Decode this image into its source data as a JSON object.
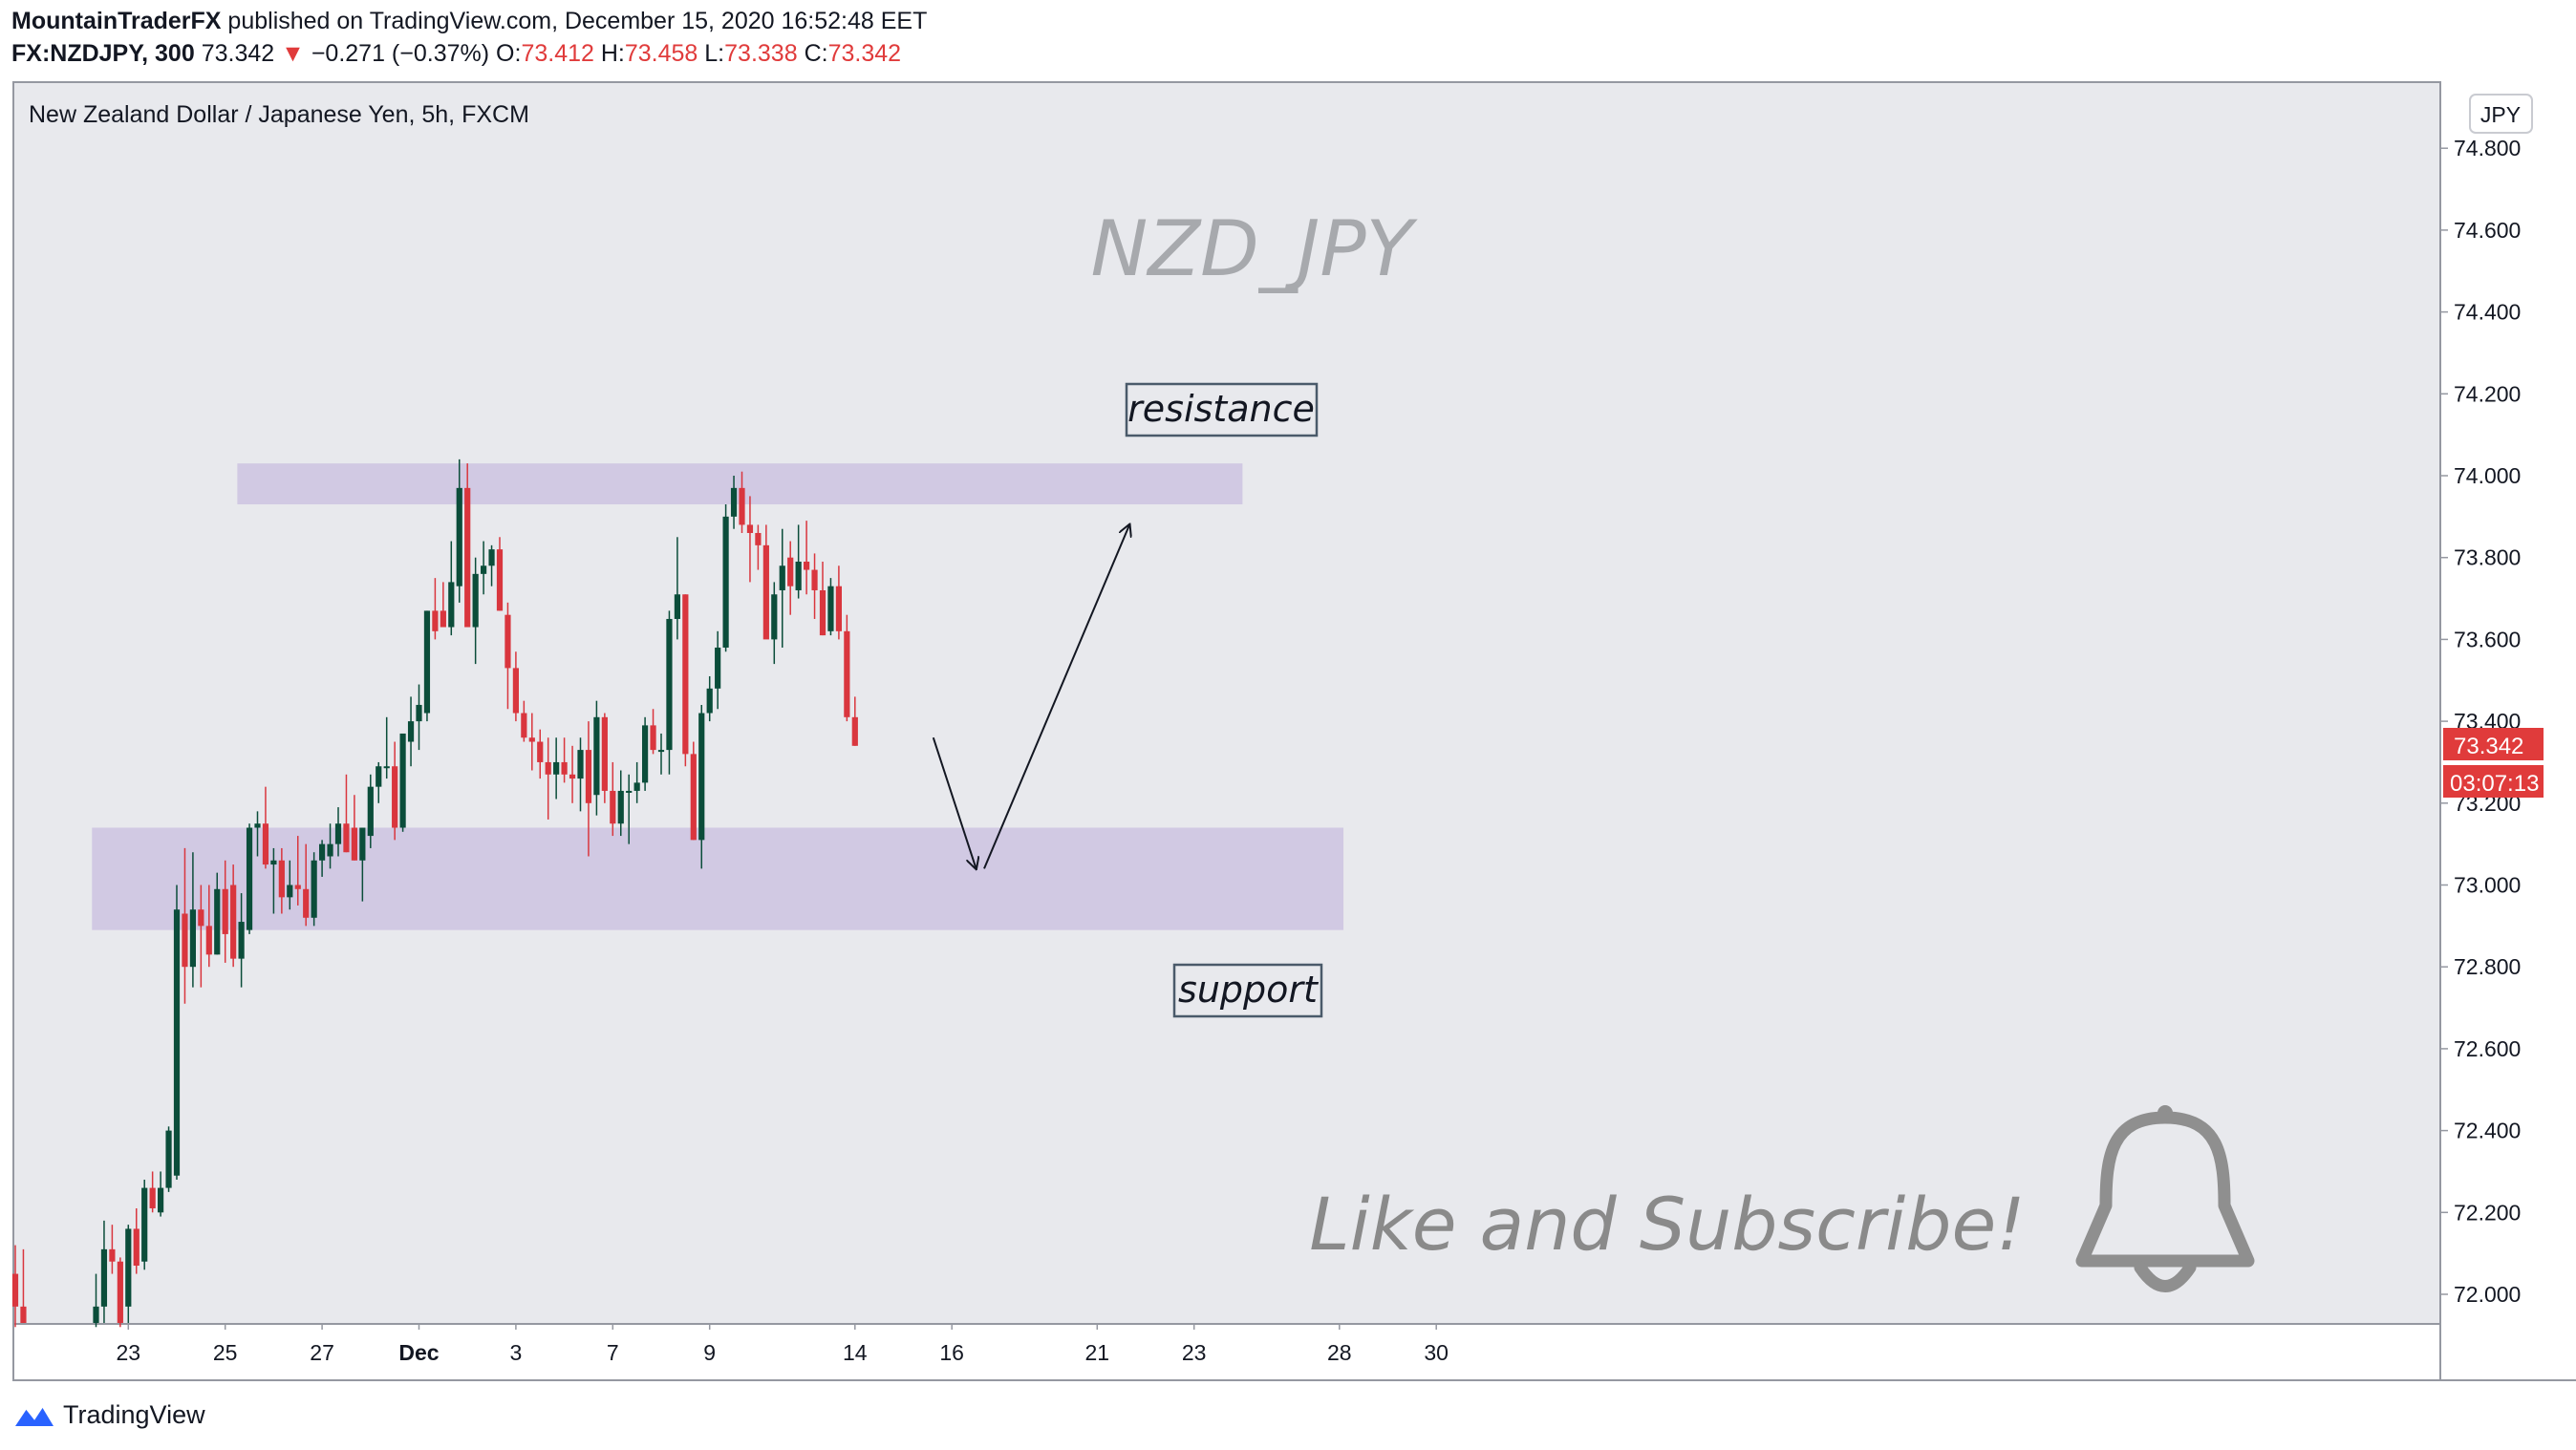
{
  "header": {
    "author": "MountainTraderFX",
    "published": "published on TradingView.com, December 15, 2020 16:52:48 EET",
    "symbol": "FX:NZDJPY, 300",
    "last": "73.342",
    "change": "−0.271 (−0.37%)",
    "o_label": "O:",
    "o_value": "73.412",
    "h_label": "H:",
    "h_value": "73.458",
    "l_label": "L:",
    "l_value": "73.338",
    "c_label": "C:",
    "c_value": "73.342"
  },
  "chart_title": "New Zealand Dollar / Japanese Yen, 5h, FXCM",
  "watermark": "NZD_JPY",
  "currency_badge": "JPY",
  "price_tag": "73.342",
  "countdown_tag": "03:07:13",
  "annotations": {
    "resistance": "resistance",
    "support": "support",
    "cta": "Like and Subscribe!"
  },
  "footer": {
    "brand": "TradingView"
  },
  "colors": {
    "up": "#0b4d3a",
    "down": "#d9363e",
    "zone": "#d1c9e3",
    "background": "#e8e9ed",
    "price_tag": "#e03b3b"
  },
  "icons": [
    "bell-icon",
    "tradingview-logo-icon"
  ],
  "chart_data": {
    "type": "candlestick",
    "ylim": [
      71.92,
      74.92
    ],
    "y_ticks": [
      "72.000",
      "72.200",
      "72.400",
      "72.600",
      "72.800",
      "73.000",
      "73.200",
      "73.400",
      "73.600",
      "73.800",
      "74.000",
      "74.200",
      "74.400",
      "74.600",
      "74.800"
    ],
    "x_ticks": [
      {
        "label": "23",
        "index": 14
      },
      {
        "label": "25",
        "index": 26
      },
      {
        "label": "27",
        "index": 38
      },
      {
        "label": "Dec",
        "index": 50
      },
      {
        "label": "3",
        "index": 62
      },
      {
        "label": "7",
        "index": 74
      },
      {
        "label": "9",
        "index": 86
      },
      {
        "label": "14",
        "index": 104
      },
      {
        "label": "16",
        "index": 116
      },
      {
        "label": "21",
        "index": 134
      },
      {
        "label": "23",
        "index": 146
      },
      {
        "label": "28",
        "index": 164
      },
      {
        "label": "30",
        "index": 176
      }
    ],
    "zones": [
      {
        "label": "resistance",
        "from_index": 27.5,
        "to_index": 152,
        "low": 73.93,
        "high": 74.03
      },
      {
        "label": "support",
        "from_index": 9.5,
        "to_index": 164.5,
        "low": 72.89,
        "high": 73.14
      }
    ],
    "projection": [
      {
        "index": 113.7,
        "price": 73.36
      },
      {
        "index": 119,
        "price": 73.04
      },
      {
        "index": 120,
        "price": 73.04
      },
      {
        "index": 138,
        "price": 73.88
      }
    ],
    "candles": [
      {
        "i": 0,
        "o": 72.05,
        "h": 72.12,
        "l": 71.92,
        "c": 71.97
      },
      {
        "i": 1,
        "o": 71.97,
        "h": 72.11,
        "l": 71.93,
        "c": 71.93
      },
      {
        "i": 10,
        "o": 71.93,
        "h": 72.05,
        "l": 71.92,
        "c": 71.97
      },
      {
        "i": 11,
        "o": 71.97,
        "h": 72.18,
        "l": 71.93,
        "c": 72.11
      },
      {
        "i": 12,
        "o": 72.11,
        "h": 72.17,
        "l": 72.05,
        "c": 72.08
      },
      {
        "i": 13,
        "o": 72.08,
        "h": 72.09,
        "l": 71.92,
        "c": 71.93
      },
      {
        "i": 14,
        "o": 71.97,
        "h": 72.17,
        "l": 71.93,
        "c": 72.16
      },
      {
        "i": 15,
        "o": 72.16,
        "h": 72.21,
        "l": 72.05,
        "c": 72.07
      },
      {
        "i": 16,
        "o": 72.08,
        "h": 72.28,
        "l": 72.06,
        "c": 72.26
      },
      {
        "i": 17,
        "o": 72.26,
        "h": 72.3,
        "l": 72.2,
        "c": 72.21
      },
      {
        "i": 18,
        "o": 72.2,
        "h": 72.3,
        "l": 72.19,
        "c": 72.26
      },
      {
        "i": 19,
        "o": 72.26,
        "h": 72.41,
        "l": 72.25,
        "c": 72.4
      },
      {
        "i": 20,
        "o": 72.29,
        "h": 73.0,
        "l": 72.28,
        "c": 72.94
      },
      {
        "i": 21,
        "o": 72.93,
        "h": 73.09,
        "l": 72.71,
        "c": 72.8
      },
      {
        "i": 22,
        "o": 72.8,
        "h": 73.08,
        "l": 72.75,
        "c": 72.94
      },
      {
        "i": 23,
        "o": 72.94,
        "h": 73.0,
        "l": 72.75,
        "c": 72.9
      },
      {
        "i": 24,
        "o": 72.9,
        "h": 73.0,
        "l": 72.8,
        "c": 72.83
      },
      {
        "i": 25,
        "o": 72.83,
        "h": 73.03,
        "l": 72.83,
        "c": 72.99
      },
      {
        "i": 26,
        "o": 72.99,
        "h": 73.06,
        "l": 72.81,
        "c": 72.88
      },
      {
        "i": 27,
        "o": 73.0,
        "h": 73.05,
        "l": 72.8,
        "c": 72.82
      },
      {
        "i": 28,
        "o": 72.82,
        "h": 72.98,
        "l": 72.75,
        "c": 72.91
      },
      {
        "i": 29,
        "o": 72.89,
        "h": 73.15,
        "l": 72.88,
        "c": 73.14
      },
      {
        "i": 30,
        "o": 73.14,
        "h": 73.18,
        "l": 73.07,
        "c": 73.15
      },
      {
        "i": 31,
        "o": 73.15,
        "h": 73.24,
        "l": 73.04,
        "c": 73.05
      },
      {
        "i": 32,
        "o": 73.05,
        "h": 73.09,
        "l": 72.93,
        "c": 73.06
      },
      {
        "i": 33,
        "o": 73.06,
        "h": 73.09,
        "l": 72.93,
        "c": 72.97
      },
      {
        "i": 34,
        "o": 72.97,
        "h": 73.06,
        "l": 72.94,
        "c": 73.0
      },
      {
        "i": 35,
        "o": 73.0,
        "h": 73.12,
        "l": 72.95,
        "c": 72.99
      },
      {
        "i": 36,
        "o": 72.99,
        "h": 73.1,
        "l": 72.9,
        "c": 72.92
      },
      {
        "i": 37,
        "o": 72.92,
        "h": 73.08,
        "l": 72.9,
        "c": 73.06
      },
      {
        "i": 38,
        "o": 73.06,
        "h": 73.11,
        "l": 73.02,
        "c": 73.1
      },
      {
        "i": 39,
        "o": 73.07,
        "h": 73.15,
        "l": 73.04,
        "c": 73.1
      },
      {
        "i": 40,
        "o": 73.1,
        "h": 73.19,
        "l": 73.07,
        "c": 73.15
      },
      {
        "i": 41,
        "o": 73.15,
        "h": 73.27,
        "l": 73.08,
        "c": 73.08
      },
      {
        "i": 42,
        "o": 73.14,
        "h": 73.22,
        "l": 73.06,
        "c": 73.06
      },
      {
        "i": 43,
        "o": 73.06,
        "h": 73.14,
        "l": 72.96,
        "c": 73.14
      },
      {
        "i": 44,
        "o": 73.12,
        "h": 73.27,
        "l": 73.09,
        "c": 73.24
      },
      {
        "i": 45,
        "o": 73.24,
        "h": 73.3,
        "l": 73.2,
        "c": 73.29
      },
      {
        "i": 46,
        "o": 73.29,
        "h": 73.41,
        "l": 73.26,
        "c": 73.29
      },
      {
        "i": 47,
        "o": 73.29,
        "h": 73.35,
        "l": 73.11,
        "c": 73.14
      },
      {
        "i": 48,
        "o": 73.14,
        "h": 73.35,
        "l": 73.13,
        "c": 73.37
      },
      {
        "i": 49,
        "o": 73.35,
        "h": 73.46,
        "l": 73.29,
        "c": 73.4
      },
      {
        "i": 50,
        "o": 73.4,
        "h": 73.49,
        "l": 73.33,
        "c": 73.44
      },
      {
        "i": 51,
        "o": 73.42,
        "h": 73.67,
        "l": 73.4,
        "c": 73.67
      },
      {
        "i": 52,
        "o": 73.67,
        "h": 73.75,
        "l": 73.6,
        "c": 73.62
      },
      {
        "i": 53,
        "o": 73.67,
        "h": 73.74,
        "l": 73.65,
        "c": 73.63
      },
      {
        "i": 54,
        "o": 73.63,
        "h": 73.84,
        "l": 73.61,
        "c": 73.74
      },
      {
        "i": 55,
        "o": 73.73,
        "h": 74.04,
        "l": 73.69,
        "c": 73.97
      },
      {
        "i": 56,
        "o": 73.97,
        "h": 74.03,
        "l": 73.63,
        "c": 73.63
      },
      {
        "i": 57,
        "o": 73.63,
        "h": 73.8,
        "l": 73.54,
        "c": 73.76
      },
      {
        "i": 58,
        "o": 73.76,
        "h": 73.84,
        "l": 73.71,
        "c": 73.78
      },
      {
        "i": 59,
        "o": 73.78,
        "h": 73.83,
        "l": 73.73,
        "c": 73.82
      },
      {
        "i": 60,
        "o": 73.82,
        "h": 73.85,
        "l": 73.67,
        "c": 73.67
      },
      {
        "i": 61,
        "o": 73.66,
        "h": 73.69,
        "l": 73.43,
        "c": 73.53
      },
      {
        "i": 62,
        "o": 73.53,
        "h": 73.57,
        "l": 73.4,
        "c": 73.42
      },
      {
        "i": 63,
        "o": 73.42,
        "h": 73.45,
        "l": 73.35,
        "c": 73.36
      },
      {
        "i": 64,
        "o": 73.36,
        "h": 73.42,
        "l": 73.28,
        "c": 73.35
      },
      {
        "i": 65,
        "o": 73.35,
        "h": 73.38,
        "l": 73.26,
        "c": 73.3
      },
      {
        "i": 66,
        "o": 73.3,
        "h": 73.36,
        "l": 73.16,
        "c": 73.27
      },
      {
        "i": 67,
        "o": 73.27,
        "h": 73.36,
        "l": 73.21,
        "c": 73.3
      },
      {
        "i": 68,
        "o": 73.3,
        "h": 73.36,
        "l": 73.25,
        "c": 73.27
      },
      {
        "i": 69,
        "o": 73.27,
        "h": 73.34,
        "l": 73.2,
        "c": 73.26
      },
      {
        "i": 70,
        "o": 73.26,
        "h": 73.36,
        "l": 73.18,
        "c": 73.33
      },
      {
        "i": 71,
        "o": 73.33,
        "h": 73.4,
        "l": 73.07,
        "c": 73.2
      },
      {
        "i": 72,
        "o": 73.22,
        "h": 73.45,
        "l": 73.17,
        "c": 73.41
      },
      {
        "i": 73,
        "o": 73.41,
        "h": 73.42,
        "l": 73.2,
        "c": 73.23
      },
      {
        "i": 74,
        "o": 73.23,
        "h": 73.3,
        "l": 73.12,
        "c": 73.15
      },
      {
        "i": 75,
        "o": 73.15,
        "h": 73.28,
        "l": 73.12,
        "c": 73.23
      },
      {
        "i": 76,
        "o": 73.23,
        "h": 73.27,
        "l": 73.1,
        "c": 73.23
      },
      {
        "i": 77,
        "o": 73.23,
        "h": 73.3,
        "l": 73.2,
        "c": 73.25
      },
      {
        "i": 78,
        "o": 73.25,
        "h": 73.41,
        "l": 73.23,
        "c": 73.39
      },
      {
        "i": 79,
        "o": 73.39,
        "h": 73.43,
        "l": 73.32,
        "c": 73.33
      },
      {
        "i": 80,
        "o": 73.33,
        "h": 73.37,
        "l": 73.27,
        "c": 73.33
      },
      {
        "i": 81,
        "o": 73.33,
        "h": 73.67,
        "l": 73.27,
        "c": 73.65
      },
      {
        "i": 82,
        "o": 73.65,
        "h": 73.85,
        "l": 73.6,
        "c": 73.71
      },
      {
        "i": 83,
        "o": 73.71,
        "h": 73.71,
        "l": 73.29,
        "c": 73.32
      },
      {
        "i": 84,
        "o": 73.32,
        "h": 73.35,
        "l": 73.11,
        "c": 73.11
      },
      {
        "i": 85,
        "o": 73.11,
        "h": 73.44,
        "l": 73.04,
        "c": 73.42
      },
      {
        "i": 86,
        "o": 73.42,
        "h": 73.51,
        "l": 73.4,
        "c": 73.48
      },
      {
        "i": 87,
        "o": 73.48,
        "h": 73.62,
        "l": 73.43,
        "c": 73.58
      },
      {
        "i": 88,
        "o": 73.58,
        "h": 73.93,
        "l": 73.57,
        "c": 73.9
      },
      {
        "i": 89,
        "o": 73.9,
        "h": 74.0,
        "l": 73.87,
        "c": 73.97
      },
      {
        "i": 90,
        "o": 73.97,
        "h": 74.01,
        "l": 73.86,
        "c": 73.88
      },
      {
        "i": 91,
        "o": 73.88,
        "h": 73.95,
        "l": 73.74,
        "c": 73.86
      },
      {
        "i": 92,
        "o": 73.86,
        "h": 73.88,
        "l": 73.77,
        "c": 73.83
      },
      {
        "i": 93,
        "o": 73.83,
        "h": 73.88,
        "l": 73.61,
        "c": 73.6
      },
      {
        "i": 94,
        "o": 73.6,
        "h": 73.74,
        "l": 73.54,
        "c": 73.71
      },
      {
        "i": 95,
        "o": 73.72,
        "h": 73.87,
        "l": 73.58,
        "c": 73.78
      },
      {
        "i": 96,
        "o": 73.8,
        "h": 73.84,
        "l": 73.66,
        "c": 73.73
      },
      {
        "i": 97,
        "o": 73.72,
        "h": 73.88,
        "l": 73.7,
        "c": 73.79
      },
      {
        "i": 98,
        "o": 73.79,
        "h": 73.89,
        "l": 73.71,
        "c": 73.77
      },
      {
        "i": 99,
        "o": 73.77,
        "h": 73.81,
        "l": 73.65,
        "c": 73.72
      },
      {
        "i": 100,
        "o": 73.72,
        "h": 73.79,
        "l": 73.61,
        "c": 73.61
      },
      {
        "i": 101,
        "o": 73.62,
        "h": 73.75,
        "l": 73.61,
        "c": 73.73
      },
      {
        "i": 102,
        "o": 73.73,
        "h": 73.78,
        "l": 73.6,
        "c": 73.62
      },
      {
        "i": 103,
        "o": 73.62,
        "h": 73.66,
        "l": 73.4,
        "c": 73.41
      },
      {
        "i": 104,
        "o": 73.41,
        "h": 73.46,
        "l": 73.34,
        "c": 73.34
      }
    ]
  }
}
